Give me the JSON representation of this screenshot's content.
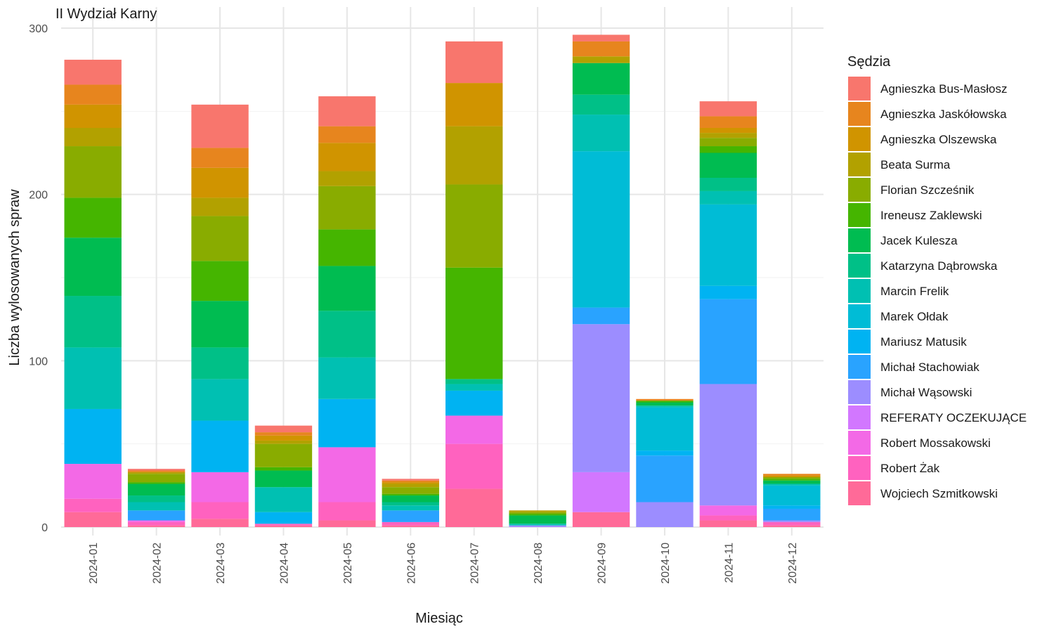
{
  "chart_data": {
    "type": "bar",
    "stacked": true,
    "title": "II Wydział Karny",
    "xlabel": "Miesiąc",
    "ylabel": "Liczba wylosowanych spraw",
    "ylim": [
      0,
      300
    ],
    "yticks": [
      0,
      100,
      200,
      300
    ],
    "grid": true,
    "legend_title": "Sędzia",
    "legend_position": "right",
    "categories": [
      "2024-01",
      "2024-02",
      "2024-03",
      "2024-04",
      "2024-05",
      "2024-06",
      "2024-07",
      "2024-08",
      "2024-09",
      "2024-10",
      "2024-11",
      "2024-12"
    ],
    "series": [
      {
        "name": "Agnieszka Bus-Masłosz",
        "color": "#F8766D",
        "values": [
          15,
          1,
          26,
          4,
          18,
          1,
          25,
          0,
          4,
          0,
          9,
          0
        ]
      },
      {
        "name": "Agnieszka Jaskółowska",
        "color": "#E7851E",
        "values": [
          12,
          1,
          12,
          2,
          10,
          1,
          0,
          0,
          9,
          1,
          7,
          1
        ]
      },
      {
        "name": "Agnieszka Olszewska",
        "color": "#D09400",
        "values": [
          14,
          0,
          18,
          3,
          17,
          1,
          26,
          0,
          0,
          0,
          3,
          1
        ]
      },
      {
        "name": "Beata Surma",
        "color": "#B2A100",
        "values": [
          11,
          1,
          11,
          2,
          9,
          2,
          35,
          1,
          4,
          0,
          3,
          0
        ]
      },
      {
        "name": "Florian Szcześnik",
        "color": "#89AC00",
        "values": [
          31,
          5,
          27,
          14,
          26,
          4,
          50,
          1,
          0,
          0,
          5,
          1
        ]
      },
      {
        "name": "Ireneusz Zaklewski",
        "color": "#45B500",
        "values": [
          24,
          1,
          24,
          2,
          22,
          1,
          67,
          1,
          0,
          1,
          4,
          1
        ]
      },
      {
        "name": "Jacek Kulesza",
        "color": "#00BC51",
        "values": [
          35,
          7,
          28,
          10,
          27,
          4,
          0,
          5,
          19,
          2,
          15,
          2
        ]
      },
      {
        "name": "Katarzyna Dąbrowska",
        "color": "#00C087",
        "values": [
          31,
          4,
          19,
          0,
          28,
          2,
          3,
          0,
          12,
          0,
          8,
          0
        ]
      },
      {
        "name": "Marcin Frelik",
        "color": "#00C0B2",
        "values": [
          37,
          5,
          25,
          15,
          25,
          3,
          4,
          1,
          22,
          1,
          8,
          1
        ]
      },
      {
        "name": "Marek Ołdak",
        "color": "#00BCD6",
        "values": [
          0,
          0,
          0,
          0,
          0,
          0,
          0,
          0,
          94,
          26,
          49,
          12
        ]
      },
      {
        "name": "Mariusz Matusik",
        "color": "#00B3F2",
        "values": [
          33,
          0,
          31,
          7,
          29,
          0,
          15,
          0,
          0,
          3,
          8,
          2
        ]
      },
      {
        "name": "Michał Stachowiak",
        "color": "#29A3FF",
        "values": [
          0,
          6,
          0,
          0,
          0,
          7,
          0,
          0,
          10,
          28,
          51,
          7
        ]
      },
      {
        "name": "Michał Wąsowski",
        "color": "#9C8DFF",
        "values": [
          0,
          0,
          0,
          0,
          0,
          0,
          0,
          1,
          89,
          15,
          73,
          1
        ]
      },
      {
        "name": "REFERATY OCZEKUJĄCE",
        "color": "#D277FF",
        "values": [
          0,
          0,
          0,
          0,
          0,
          0,
          0,
          0,
          24,
          0,
          0,
          0
        ]
      },
      {
        "name": "Robert Mossakowski",
        "color": "#F369E6",
        "values": [
          21,
          1,
          18,
          0,
          33,
          0,
          17,
          0,
          0,
          0,
          6,
          0
        ]
      },
      {
        "name": "Robert Żak",
        "color": "#FF62BF",
        "values": [
          8,
          2,
          10,
          1,
          11,
          2,
          27,
          0,
          0,
          0,
          3,
          2
        ]
      },
      {
        "name": "Wojciech Szmitkowski",
        "color": "#FF6A98",
        "values": [
          9,
          1,
          5,
          1,
          4,
          1,
          23,
          0,
          9,
          0,
          4,
          1
        ]
      }
    ]
  }
}
